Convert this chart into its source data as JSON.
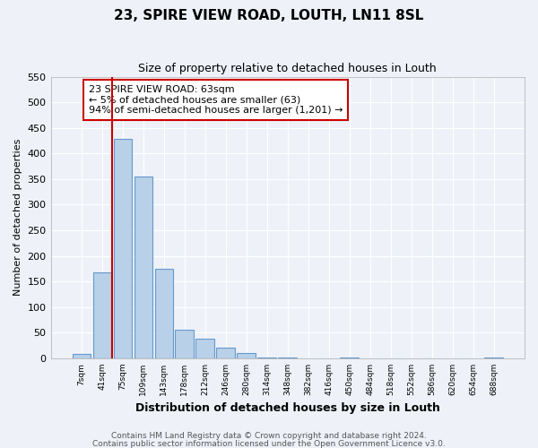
{
  "title": "23, SPIRE VIEW ROAD, LOUTH, LN11 8SL",
  "subtitle": "Size of property relative to detached houses in Louth",
  "xlabel": "Distribution of detached houses by size in Louth",
  "ylabel": "Number of detached properties",
  "bar_labels": [
    "7sqm",
    "41sqm",
    "75sqm",
    "109sqm",
    "143sqm",
    "178sqm",
    "212sqm",
    "246sqm",
    "280sqm",
    "314sqm",
    "348sqm",
    "382sqm",
    "416sqm",
    "450sqm",
    "484sqm",
    "518sqm",
    "552sqm",
    "586sqm",
    "620sqm",
    "654sqm",
    "688sqm"
  ],
  "bar_values": [
    8,
    168,
    428,
    355,
    175,
    55,
    38,
    20,
    10,
    2,
    1,
    0,
    0,
    1,
    0,
    0,
    0,
    0,
    0,
    0,
    1
  ],
  "bar_color": "#b8d0e8",
  "bar_edge_color": "#6699cc",
  "vline_x": 1.5,
  "vline_color": "#cc0000",
  "annotation_text": "23 SPIRE VIEW ROAD: 63sqm\n← 5% of detached houses are smaller (63)\n94% of semi-detached houses are larger (1,201) →",
  "annotation_box_color": "#ffffff",
  "annotation_box_edge": "#cc0000",
  "ylim": [
    0,
    550
  ],
  "yticks": [
    0,
    50,
    100,
    150,
    200,
    250,
    300,
    350,
    400,
    450,
    500,
    550
  ],
  "footnote1": "Contains HM Land Registry data © Crown copyright and database right 2024.",
  "footnote2": "Contains public sector information licensed under the Open Government Licence v3.0.",
  "bg_color": "#eef2f8",
  "plot_bg_color": "#eef2f8"
}
